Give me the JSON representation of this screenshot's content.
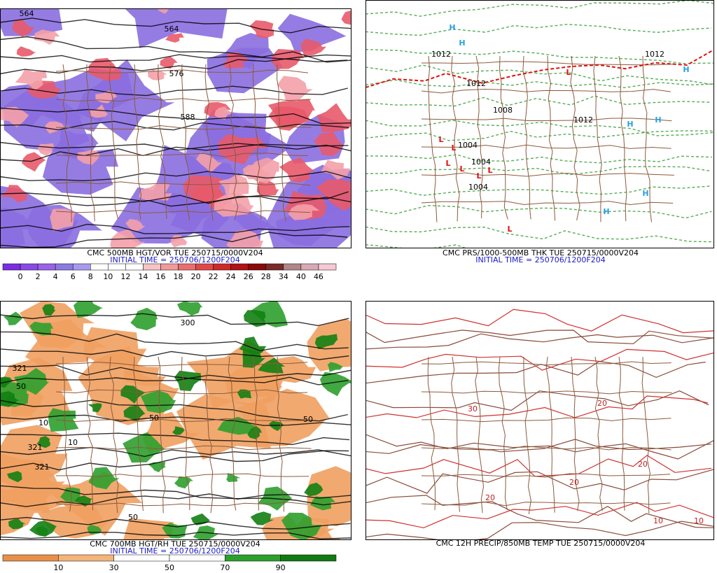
{
  "panels": [
    {
      "title": "CMC 500MB HGT/VOR TUE 250715/0000V204",
      "initial_time": "INITIAL TIME = 250706/1200F204",
      "colorbar": {
        "labels": [
          0,
          2,
          4,
          6,
          8,
          10,
          12,
          14,
          16,
          18,
          20,
          22,
          24,
          26,
          28,
          34,
          40,
          46
        ],
        "colors": [
          "#7a2ee0",
          "#8a4ae6",
          "#9a62e8",
          "#8c7ae0",
          "#a79aee",
          "#ffffff",
          "#ffffff",
          "#ffffff",
          "#f6c4c4",
          "#f09a9a",
          "#ea6e6e",
          "#e04848",
          "#cc2a2a",
          "#b01414",
          "#8a0a0a",
          "#7a2a2a",
          "#b0868a",
          "#d8a8b4",
          "#f4c8d4"
        ]
      },
      "contour_labels": [
        "564",
        "564",
        "576",
        "588"
      ]
    },
    {
      "title": "CMC PRS/1000-500MB THK TUE 250715/0000V204",
      "initial_time": "INITIAL TIME = 250706/1200F204",
      "contour_labels": [
        "1012",
        "1012",
        "1012",
        "1004",
        "1004",
        "1004",
        "1008",
        "1012"
      ],
      "centers": [
        "H",
        "H",
        "H",
        "H",
        "H",
        "H",
        "H",
        "L",
        "L",
        "L",
        "L",
        "L",
        "L",
        "L",
        "L"
      ]
    },
    {
      "title": "CMC 700MB HGT/RH TUE 250715/0000V204",
      "initial_time": "INITIAL TIME = 250706/1200F204",
      "colorbar": {
        "labels": [
          10,
          30,
          50,
          70,
          90
        ],
        "colors": [
          "#e8904a",
          "#f4b47a",
          "#ffffff",
          "#ffffff",
          "#2ca02c",
          "#127a12"
        ]
      },
      "contour_labels": [
        "321",
        "50",
        "321",
        "10",
        "10",
        "321",
        "50",
        "50",
        "50",
        "300"
      ]
    },
    {
      "title": "CMC 12H PRECIP/850MB TEMP TUE 250715/0000V204",
      "contour_labels": [
        "20",
        "20",
        "20",
        "20",
        "10",
        "10",
        "30"
      ]
    }
  ]
}
